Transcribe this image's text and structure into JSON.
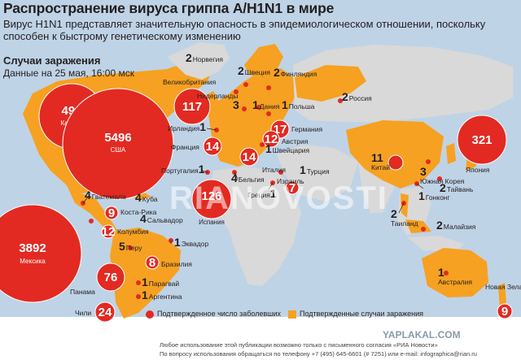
{
  "title": "Распространение вируса гриппа A/H1N1 в мире",
  "subtitle": "Вирус H1N1 представляет значительную опасность в эпидемиологическом отношении, поскольку способен к быстрому генетическому изменению",
  "cases_title": "Случаи заражения",
  "cases_date": "Данные на 25 мая, 16:00 мск",
  "colors": {
    "ocean": "#bfd3e6",
    "land": "#d9d9d9",
    "confirmed_land": "#f6a121",
    "bubble": "#e22a22"
  },
  "bubbles": {
    "canada": {
      "count": "496",
      "name": "Канада"
    },
    "usa": {
      "count": "5496",
      "name": "США"
    },
    "mexico": {
      "count": "3892",
      "name": "Мексика"
    },
    "uk": {
      "count": "117"
    },
    "spain": {
      "count": "126",
      "name": "Испания"
    },
    "japan": {
      "count": "321"
    },
    "china": {
      "count": "11"
    },
    "germany": {
      "count": "17"
    },
    "france": {
      "count": "14"
    },
    "italy": {
      "count": "14"
    },
    "austria": {
      "count": "12"
    },
    "panama": {
      "count": "76"
    },
    "chile": {
      "count": "24"
    },
    "costarica": {
      "count": "9"
    },
    "colombia": {
      "count": "12"
    },
    "israel": {
      "count": "7"
    },
    "brazil": {
      "count": "8"
    },
    "newzealand": {
      "count": "9"
    }
  },
  "countries": {
    "norway": {
      "count": "2",
      "name": "Норвегия"
    },
    "sweden": {
      "count": "2",
      "name": "Швеция"
    },
    "finland": {
      "count": "2",
      "name": "Финляндия"
    },
    "russia": {
      "count": "2",
      "name": "Россия"
    },
    "uk": {
      "name": "Великобритания"
    },
    "netherlands": {
      "count": "3",
      "name": "Нидерланды"
    },
    "denmark": {
      "count": "1",
      "name": "Дания"
    },
    "poland": {
      "count": "1",
      "name": "Польша"
    },
    "ireland": {
      "count": "1",
      "name": "Ирландия"
    },
    "germany": {
      "name": "Германия"
    },
    "austria": {
      "name": "Австрия"
    },
    "switzerland": {
      "count": "1",
      "name": "Швейцария"
    },
    "france": {
      "name": "Франция"
    },
    "portugal": {
      "count": "1",
      "name": "Португалия"
    },
    "belgium": {
      "count": "4",
      "name": "Бельгия"
    },
    "italy": {
      "name": "Италия"
    },
    "turkey": {
      "count": "1",
      "name": "Турция"
    },
    "greece": {
      "count": "1",
      "name": "Греция"
    },
    "israel": {
      "name": "Израиль"
    },
    "china": {
      "name": "Китай"
    },
    "japan": {
      "name": "Япония"
    },
    "korea": {
      "count": "3",
      "name": "Южная Корея"
    },
    "taiwan": {
      "count": "2",
      "name": "Тайвань"
    },
    "hongkong": {
      "count": "1",
      "name": "Гонконг"
    },
    "thailand": {
      "count": "2",
      "name": "Таиланд"
    },
    "malaysia": {
      "count": "2",
      "name": "Малайзия"
    },
    "australia": {
      "count": "1",
      "name": "Австралия"
    },
    "newzealand": {
      "name": "Новая Зеландия"
    },
    "guatemala": {
      "count": "4",
      "name": "Гватемала"
    },
    "cuba": {
      "count": "4",
      "name": "Куба"
    },
    "costarica": {
      "name": "Коста-Рика"
    },
    "salvador": {
      "count": "4",
      "name": "Сальвадор"
    },
    "colombia": {
      "name": "Колумбия"
    },
    "ecuador": {
      "count": "1",
      "name": "Эквадор"
    },
    "peru": {
      "count": "5",
      "name": "Перу"
    },
    "brazil": {
      "name": "Бразилия"
    },
    "panama": {
      "name": "Панама"
    },
    "paraguay": {
      "count": "1",
      "name": "Парагвай"
    },
    "argentina": {
      "count": "1",
      "name": "Аргентина"
    },
    "chile": {
      "name": "Чили"
    }
  },
  "legend": {
    "bubble_label": "Подтвержденное число заболевших",
    "area_label": "Подтвержденные случаи заражения"
  },
  "watermark": "RIANOVOSTI",
  "site_watermark": "YAPLAKAL.COM",
  "footer": {
    "line1": "Любое использование этой публикации возможно только с письменного согласия «РИА Новости»",
    "line2": "По вопросу использования обращаться по телефону +7 (495) 645-6601 (# 7251) или e-mail: infographica@rian.ru"
  }
}
